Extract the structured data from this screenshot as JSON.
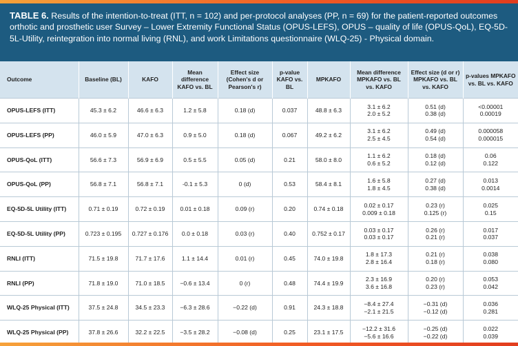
{
  "caption": {
    "label": "TABLE 6.",
    "text": "Results of the intention-to-treat (ITT, n = 102) and per-protocol analyses (PP, n = 69) for the patient-reported outcomes orthotic and prosthetic user Survey – Lower Extremity Functional Status (OPUS-LEFS), OPUS – quality of life (OPUS-QoL), EQ-5D-5L-Utility, reintegration into normal living (RNL), and work Limitations questionnaire (WLQ-25) - Physical domain."
  },
  "headers": [
    "Outcome",
    "Baseline (BL)",
    "KAFO",
    "Mean difference KAFO vs. BL",
    "Effect size (Cohen's d or Pearson's r)",
    "p-value KAFO vs. BL",
    "MPKAFO",
    "Mean difference MPKAFO vs. BL vs. KAFO",
    "Effect size (d or r) MPKAFO vs. BL vs. KAFO",
    "p-values MPKAFO vs. BL vs. KAFO"
  ],
  "rows": [
    [
      "OPUS-LEFS (ITT)",
      "45.3 ± 6.2",
      "46.6 ± 6.3",
      "1.2 ± 5.8",
      "0.18 (d)",
      "0.037",
      "48.8 ± 6.3",
      [
        "3.1 ± 6.2",
        "2.0 ± 5.2"
      ],
      [
        "0.51 (d)",
        "0.38 (d)"
      ],
      [
        "<0.00001",
        "0.00019"
      ]
    ],
    [
      "OPUS-LEFS (PP)",
      "46.0 ± 5.9",
      "47.0 ± 6.3",
      "0.9 ± 5.0",
      "0.18 (d)",
      "0.067",
      "49.2 ± 6.2",
      [
        "3.1 ± 6.2",
        "2.5 ± 4.5"
      ],
      [
        "0.49 (d)",
        "0.54 (d)"
      ],
      [
        "0.000058",
        "0.000015"
      ]
    ],
    [
      "OPUS-QoL (ITT)",
      "56.6 ± 7.3",
      "56.9 ± 6.9",
      "0.5 ± 5.5",
      "0.05 (d)",
      "0.21",
      "58.0 ± 8.0",
      [
        "1.1 ± 6.2",
        "0.6 ± 5.2"
      ],
      [
        "0.18 (d)",
        "0.12 (d)"
      ],
      [
        "0.06",
        "0.122"
      ]
    ],
    [
      "OPUS-QoL (PP)",
      "56.8 ± 7.1",
      "56.8 ± 7.1",
      "-0.1 ± 5.3",
      "0 (d)",
      "0.53",
      "58.4 ± 8.1",
      [
        "1.6 ± 5.8",
        "1.8 ± 4.5"
      ],
      [
        "0.27 (d)",
        "0.38 (d)"
      ],
      [
        "0.013",
        "0.0014"
      ]
    ],
    [
      "EQ-5D-5L Utility (ITT)",
      "0.71 ± 0.19",
      "0.72 ± 0.19",
      "0.01 ± 0.18",
      "0.09 (r)",
      "0.20",
      "0.74 ± 0.18",
      [
        "0.02 ± 0.17",
        "0.009 ± 0.18"
      ],
      [
        "0.23 (r)",
        "0.125 (r)"
      ],
      [
        "0.025",
        "0.15"
      ]
    ],
    [
      "EQ-5D-5L Utility (PP)",
      "0.723 ± 0.195",
      "0.727 ± 0.176",
      "0.0 ± 0.18",
      "0.03 (r)",
      "0.40",
      "0.752 ± 0.17",
      [
        "0.03 ± 0.17",
        "0.03 ± 0.17"
      ],
      [
        "0.26 (r)",
        "0.21 (r)"
      ],
      [
        "0.017",
        "0.037"
      ]
    ],
    [
      "RNLI (ITT)",
      "71.5 ± 19.8",
      "71.7 ± 17.6",
      "1.1 ± 14.4",
      "0.01 (r)",
      "0.45",
      "74.0 ± 19.8",
      [
        "1.8 ± 17.3",
        "2.8 ± 16.4"
      ],
      [
        "0.21 (r)",
        "0.18 (r)"
      ],
      [
        "0.038",
        "0.080"
      ]
    ],
    [
      "RNLI (PP)",
      "71.8 ± 19.0",
      "71.0 ± 18.5",
      "−0.6 ± 13.4",
      "0 (r)",
      "0.48",
      "74.4 ± 19.9",
      [
        "2.3 ± 16.9",
        "3.6 ± 16.8"
      ],
      [
        "0.20 (r)",
        "0.23 (r)"
      ],
      [
        "0.053",
        "0.042"
      ]
    ],
    [
      "WLQ-25 Physical (ITT)",
      "37.5 ± 24.8",
      "34.5 ± 23.3",
      "−6.3 ± 28.6",
      "−0.22 (d)",
      "0.91",
      "24.3 ± 18.8",
      [
        "−8.4 ± 27.4",
        "−2.1 ± 21.5"
      ],
      [
        "−0.31 (d)",
        "−0.12 (d)"
      ],
      [
        "0.036",
        "0.281"
      ]
    ],
    [
      "WLQ-25 Physical (PP)",
      "37.8 ± 26.6",
      "32.2 ± 22.5",
      "−3.5 ± 28.2",
      "−0.08 (d)",
      "0.25",
      "23.1 ± 17.5",
      [
        "−12.2 ± 31.6",
        "−5.6 ± 16.6"
      ],
      [
        "−0.25 (d)",
        "−0.22 (d)"
      ],
      [
        "0.022",
        "0.039"
      ]
    ]
  ],
  "colors": {
    "caption_bg": "#1d5b80",
    "header_bg": "#d4e3ee",
    "accent_bar": "#f15a24"
  }
}
